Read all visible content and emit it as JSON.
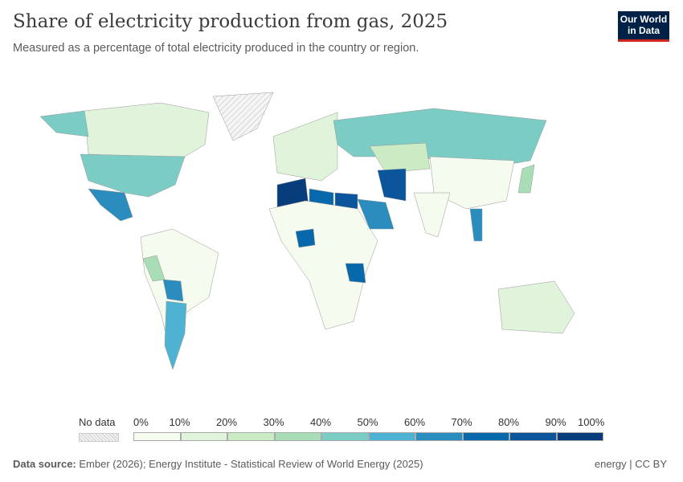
{
  "header": {
    "title": "Share of electricity production from gas, 2025",
    "subtitle": "Measured as a percentage of total electricity produced in the country or region.",
    "logo": "Our World in Data"
  },
  "legend": {
    "no_data_label": "No data",
    "ticks": [
      "0%",
      "10%",
      "20%",
      "30%",
      "40%",
      "50%",
      "60%",
      "70%",
      "80%",
      "90%",
      "100%"
    ],
    "colors": [
      "#f5fbef",
      "#e0f3db",
      "#cbebc5",
      "#a8ddb5",
      "#7bccc4",
      "#4eb3d3",
      "#2b8cbe",
      "#0868ac",
      "#0a559b",
      "#083d7b"
    ],
    "no_data_color": "#eeeeee"
  },
  "map_regions": [
    {
      "name": "Canada",
      "bin": 1
    },
    {
      "name": "United States",
      "bin": 4
    },
    {
      "name": "Alaska",
      "bin": 4
    },
    {
      "name": "Mexico",
      "bin": 6
    },
    {
      "name": "South America",
      "bin": 0
    },
    {
      "name": "Argentina",
      "bin": 5
    },
    {
      "name": "Bolivia",
      "bin": 6
    },
    {
      "name": "Peru",
      "bin": 3
    },
    {
      "name": "Greenland",
      "bin": -1
    },
    {
      "name": "Europe",
      "bin": 1
    },
    {
      "name": "Russia",
      "bin": 4
    },
    {
      "name": "Kazakhstan",
      "bin": 2
    },
    {
      "name": "Algeria",
      "bin": 9
    },
    {
      "name": "Libya",
      "bin": 7
    },
    {
      "name": "Egypt",
      "bin": 8
    },
    {
      "name": "Africa",
      "bin": 0
    },
    {
      "name": "Nigeria",
      "bin": 7
    },
    {
      "name": "Tanzania",
      "bin": 7
    },
    {
      "name": "Saudi Arabia",
      "bin": 6
    },
    {
      "name": "Iran",
      "bin": 8
    },
    {
      "name": "China",
      "bin": 0
    },
    {
      "name": "India",
      "bin": 0
    },
    {
      "name": "Japan",
      "bin": 3
    },
    {
      "name": "Thailand",
      "bin": 6
    },
    {
      "name": "Australia",
      "bin": 1
    }
  ],
  "footer": {
    "source_label": "Data source:",
    "source": "Ember (2026); Energy Institute - Statistical Review of World Energy (2025)",
    "license": "energy | CC BY"
  }
}
